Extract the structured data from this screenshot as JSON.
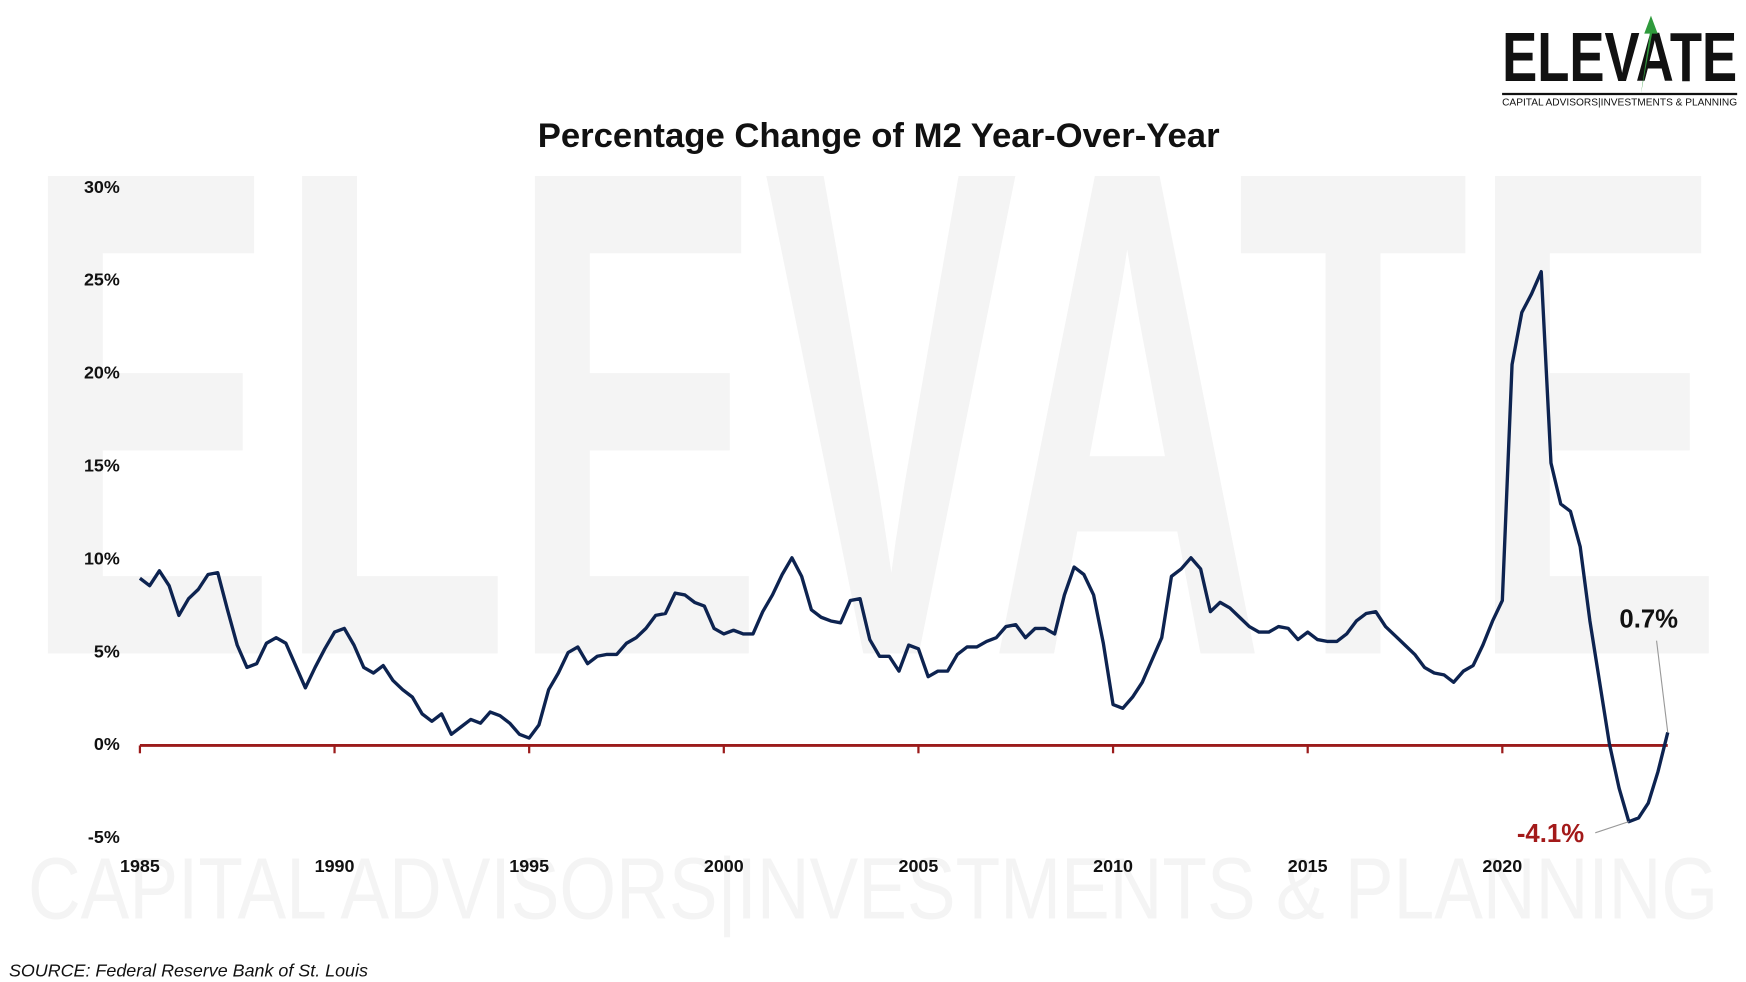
{
  "chart_data": {
    "type": "line",
    "title": "Percentage Change of M2 Year-Over-Year",
    "logo": {
      "name": "ELEVATE",
      "tagline": "CAPITAL ADVISORS|INVESTMENTS & PLANNING"
    },
    "source": "SOURCE: Federal Reserve Bank of St. Louis",
    "color": "#0d2350",
    "zero_line_color": "#9b1b1b",
    "grid": false,
    "xlim": [
      1985,
      2024.25
    ],
    "xticks": [
      1985,
      1990,
      1995,
      2000,
      2005,
      2010,
      2015,
      2020
    ],
    "ylim": [
      -5,
      30
    ],
    "yticks": [
      {
        "value": -5,
        "label": "-5%"
      },
      {
        "value": 0,
        "label": "0%"
      },
      {
        "value": 5,
        "label": "5%"
      },
      {
        "value": 10,
        "label": "10%"
      },
      {
        "value": 15,
        "label": "15%"
      },
      {
        "value": 20,
        "label": "20%"
      },
      {
        "value": 25,
        "label": "25%"
      },
      {
        "value": 30,
        "label": "30%"
      }
    ],
    "annotations": [
      {
        "text": "0.7%",
        "color": "#111111"
      },
      {
        "text": "-4.1%",
        "color": "#a31a1a"
      }
    ],
    "x": [
      1985,
      1985.25,
      1985.5,
      1985.75,
      1986,
      1986.25,
      1986.5,
      1986.75,
      1987,
      1987.25,
      1987.5,
      1987.75,
      1988,
      1988.25,
      1988.5,
      1988.75,
      1989,
      1989.25,
      1989.5,
      1989.75,
      1990,
      1990.25,
      1990.5,
      1990.75,
      1991,
      1991.25,
      1991.5,
      1991.75,
      1992,
      1992.25,
      1992.5,
      1992.75,
      1993,
      1993.25,
      1993.5,
      1993.75,
      1994,
      1994.25,
      1994.5,
      1994.75,
      1995,
      1995.25,
      1995.5,
      1995.75,
      1996,
      1996.25,
      1996.5,
      1996.75,
      1997,
      1997.25,
      1997.5,
      1997.75,
      1998,
      1998.25,
      1998.5,
      1998.75,
      1999,
      1999.25,
      1999.5,
      1999.75,
      2000,
      2000.25,
      2000.5,
      2000.75,
      2001,
      2001.25,
      2001.5,
      2001.75,
      2002,
      2002.25,
      2002.5,
      2002.75,
      2003,
      2003.25,
      2003.5,
      2003.75,
      2004,
      2004.25,
      2004.5,
      2004.75,
      2005,
      2005.25,
      2005.5,
      2005.75,
      2006,
      2006.25,
      2006.5,
      2006.75,
      2007,
      2007.25,
      2007.5,
      2007.75,
      2008,
      2008.25,
      2008.5,
      2008.75,
      2009,
      2009.25,
      2009.5,
      2009.75,
      2010,
      2010.25,
      2010.5,
      2010.75,
      2011,
      2011.25,
      2011.5,
      2011.75,
      2012,
      2012.25,
      2012.5,
      2012.75,
      2013,
      2013.25,
      2013.5,
      2013.75,
      2014,
      2014.25,
      2014.5,
      2014.75,
      2015,
      2015.25,
      2015.5,
      2015.75,
      2016,
      2016.25,
      2016.5,
      2016.75,
      2017,
      2017.25,
      2017.5,
      2017.75,
      2018,
      2018.25,
      2018.5,
      2018.75,
      2019,
      2019.25,
      2019.5,
      2019.75,
      2020,
      2020.25,
      2020.5,
      2020.75,
      2021,
      2021.25,
      2021.5,
      2021.75,
      2022,
      2022.25,
      2022.5,
      2022.75,
      2023,
      2023.25,
      2023.5,
      2023.75,
      2024,
      2024.25
    ],
    "values": [
      9.0,
      8.6,
      9.4,
      8.6,
      7.0,
      7.9,
      8.4,
      9.2,
      9.3,
      7.3,
      5.4,
      4.2,
      4.4,
      5.5,
      5.8,
      5.5,
      4.3,
      3.1,
      4.2,
      5.2,
      6.1,
      6.3,
      5.4,
      4.2,
      3.9,
      4.3,
      3.5,
      3.0,
      2.6,
      1.7,
      1.3,
      1.7,
      0.6,
      1.0,
      1.4,
      1.2,
      1.8,
      1.6,
      1.2,
      0.6,
      0.4,
      1.1,
      3.0,
      3.9,
      5.0,
      5.3,
      4.4,
      4.8,
      4.9,
      4.9,
      5.5,
      5.8,
      6.3,
      7.0,
      7.1,
      8.2,
      8.1,
      7.7,
      7.5,
      6.3,
      6.0,
      6.2,
      6.0,
      6.0,
      7.2,
      8.1,
      9.2,
      10.1,
      9.1,
      7.3,
      6.9,
      6.7,
      6.6,
      7.8,
      7.9,
      5.7,
      4.8,
      4.8,
      4.0,
      5.4,
      5.2,
      3.7,
      4.0,
      4.0,
      4.9,
      5.3,
      5.3,
      5.6,
      5.8,
      6.4,
      6.5,
      5.8,
      6.3,
      6.3,
      6.0,
      8.1,
      9.6,
      9.2,
      8.1,
      5.5,
      2.2,
      2.0,
      2.6,
      3.4,
      4.6,
      5.8,
      9.1,
      9.5,
      10.1,
      9.5,
      7.2,
      7.7,
      7.4,
      6.9,
      6.4,
      6.1,
      6.1,
      6.4,
      6.3,
      5.7,
      6.1,
      5.7,
      5.6,
      5.6,
      6.0,
      6.7,
      7.1,
      7.2,
      6.4,
      5.9,
      5.4,
      4.9,
      4.2,
      3.9,
      3.8,
      3.4,
      4.0,
      4.3,
      5.4,
      6.7,
      7.8,
      20.5,
      23.3,
      24.3,
      25.5,
      15.2,
      13.0,
      12.6,
      10.7,
      6.7,
      3.4,
      0.1,
      -2.3,
      -4.1,
      -3.9,
      -3.1,
      -1.4,
      0.7
    ]
  }
}
